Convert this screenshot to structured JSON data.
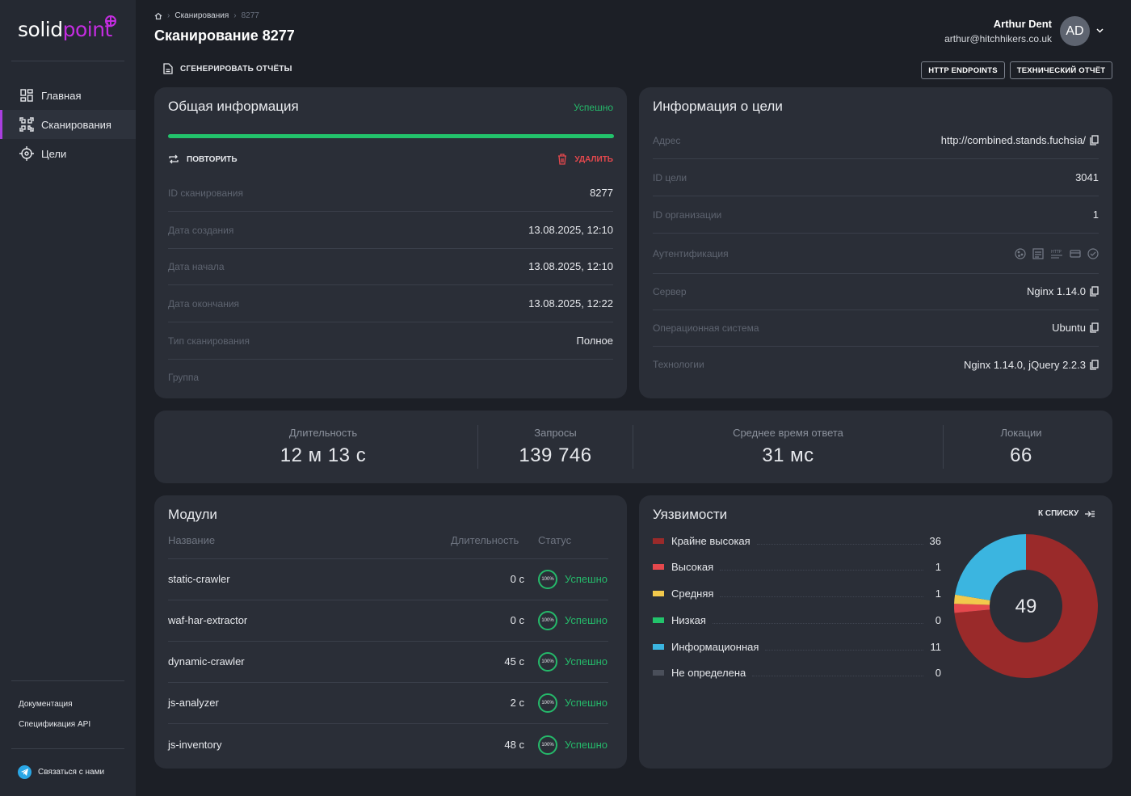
{
  "sidebar": {
    "logo_a": "solid",
    "logo_b": "point",
    "items": [
      {
        "label": "Главная",
        "icon": "dashboard-icon"
      },
      {
        "label": "Сканирования",
        "icon": "qr-scan-icon"
      },
      {
        "label": "Цели",
        "icon": "target-icon"
      }
    ],
    "docs": "Документация",
    "api": "Спецификация API",
    "contact": "Связаться с нами"
  },
  "header": {
    "crumbs": [
      "Сканирования",
      "8277"
    ],
    "title": "Сканирование 8277",
    "generate": "СГЕНЕРИРОВАТЬ ОТЧЁТЫ",
    "user_name": "Arthur Dent",
    "user_email": "arthur@hitchhikers.co.uk",
    "avatar": "AD",
    "btn_http": "HTTP ENDPOINTS",
    "btn_tech": "ТЕХНИЧЕСКИЙ ОТЧЁТ"
  },
  "general": {
    "title": "Общая информация",
    "status": "Успешно",
    "progress": 1.0,
    "repeat": "ПОВТОРИТЬ",
    "delete": "УДАЛИТЬ",
    "rows": [
      {
        "k": "ID сканирования",
        "v": "8277"
      },
      {
        "k": "Дата создания",
        "v": "13.08.2025, 12:10"
      },
      {
        "k": "Дата начала",
        "v": "13.08.2025, 12:10"
      },
      {
        "k": "Дата окончания",
        "v": "13.08.2025, 12:22"
      },
      {
        "k": "Тип сканирования",
        "v": "Полное"
      },
      {
        "k": "Группа",
        "v": ""
      }
    ]
  },
  "target": {
    "title": "Информация о цели",
    "rows": [
      {
        "k": "Адрес",
        "v": "http://combined.stands.fuchsia/"
      },
      {
        "k": "ID цели",
        "v": "3041"
      },
      {
        "k": "ID организации",
        "v": "1"
      },
      {
        "k": "Аутентификация",
        "v": ""
      },
      {
        "k": "Сервер",
        "v": "Nginx 1.14.0"
      },
      {
        "k": "Операционная система",
        "v": "Ubuntu"
      },
      {
        "k": "Технологии",
        "v": "Nginx 1.14.0, jQuery 2.2.3"
      }
    ],
    "auth_icons": [
      "cookie-icon",
      "form-icon",
      "http-auth-icon",
      "card-icon",
      "check-circle-icon"
    ]
  },
  "stats": [
    {
      "label": "Длительность",
      "value": "12 м  13 с"
    },
    {
      "label": "Запросы",
      "value": "139 746"
    },
    {
      "label": "Среднее время ответа",
      "value": "31 мс"
    },
    {
      "label": "Локации",
      "value": "66"
    }
  ],
  "modules": {
    "title": "Модули",
    "h_name": "Название",
    "h_dur": "Длительность",
    "h_status": "Статус",
    "rows": [
      {
        "name": "static-crawler",
        "dur": "0 с",
        "pct": "100%",
        "status": "Успешно"
      },
      {
        "name": "waf-har-extractor",
        "dur": "0 с",
        "pct": "100%",
        "status": "Успешно"
      },
      {
        "name": "dynamic-crawler",
        "dur": "45 с",
        "pct": "100%",
        "status": "Успешно"
      },
      {
        "name": "js-analyzer",
        "dur": "2 с",
        "pct": "100%",
        "status": "Успешно"
      },
      {
        "name": "js-inventory",
        "dur": "48 с",
        "pct": "100%",
        "status": "Успешно"
      }
    ]
  },
  "vulns": {
    "title": "Уязвимости",
    "to_list": "К СПИСКУ",
    "total": "49",
    "items": [
      {
        "label": "Крайне высокая",
        "count": 36,
        "color": "#9a2a2a"
      },
      {
        "label": "Высокая",
        "count": 1,
        "color": "#e5484d"
      },
      {
        "label": "Средняя",
        "count": 1,
        "color": "#f2c94c"
      },
      {
        "label": "Низкая",
        "count": 0,
        "color": "#22c36b"
      },
      {
        "label": "Информационная",
        "count": 11,
        "color": "#3bb5e0"
      },
      {
        "label": "Не определена",
        "count": 0,
        "color": "#4a4f5a"
      }
    ]
  },
  "colors": {
    "accent": "#a93fe0",
    "success": "#25b96a",
    "card": "#2a2e37",
    "bg": "#1c1f26"
  }
}
